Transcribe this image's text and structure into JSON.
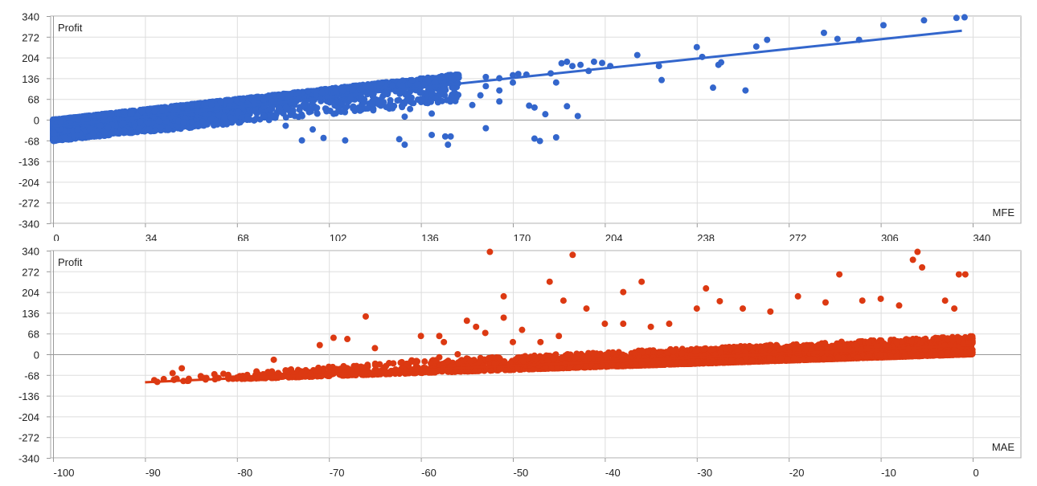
{
  "chart_data": [
    {
      "type": "scatter",
      "title": "",
      "xlabel": "MFE",
      "ylabel": "Profit",
      "xlim": [
        0,
        340
      ],
      "ylim": [
        -340,
        340
      ],
      "x_ticks": [
        0,
        34,
        68,
        102,
        136,
        170,
        204,
        238,
        272,
        306,
        340
      ],
      "y_ticks": [
        340,
        272,
        204,
        136,
        68,
        0,
        -68,
        -136,
        -204,
        -272,
        -340
      ],
      "grid": true,
      "color": "#3366cc",
      "trendline": {
        "x": [
          0,
          336
        ],
        "y": [
          -22,
          292
        ]
      },
      "dense_band": {
        "x_range": [
          0,
          150
        ],
        "upper_line": [
          [
            0,
            0
          ],
          [
            150,
            150
          ]
        ],
        "lower_bound": -90
      },
      "points": [
        [
          150,
          138
        ],
        [
          160,
          140
        ],
        [
          165,
          136
        ],
        [
          170,
          146
        ],
        [
          172,
          150
        ],
        [
          175,
          148
        ],
        [
          184,
          152
        ],
        [
          188,
          185
        ],
        [
          190,
          190
        ],
        [
          192,
          176
        ],
        [
          195,
          180
        ],
        [
          200,
          190
        ],
        [
          203,
          186
        ],
        [
          206,
          176
        ],
        [
          160,
          110
        ],
        [
          165,
          96
        ],
        [
          170,
          122
        ],
        [
          176,
          46
        ],
        [
          178,
          40
        ],
        [
          182,
          18
        ],
        [
          186,
          122
        ],
        [
          190,
          44
        ],
        [
          194,
          12
        ],
        [
          198,
          160
        ],
        [
          216,
          212
        ],
        [
          224,
          176
        ],
        [
          225,
          130
        ],
        [
          238,
          238
        ],
        [
          240,
          206
        ],
        [
          246,
          180
        ],
        [
          247,
          188
        ],
        [
          244,
          105
        ],
        [
          256,
          96
        ],
        [
          260,
          240
        ],
        [
          264,
          262
        ],
        [
          285,
          285
        ],
        [
          290,
          265
        ],
        [
          298,
          262
        ],
        [
          307,
          310
        ],
        [
          322,
          326
        ],
        [
          334,
          334
        ],
        [
          337,
          336
        ],
        [
          110,
          70
        ],
        [
          118,
          60
        ],
        [
          125,
          45
        ],
        [
          130,
          10
        ],
        [
          140,
          -50
        ],
        [
          145,
          -55
        ],
        [
          147,
          -55
        ],
        [
          128,
          -64
        ],
        [
          108,
          -68
        ],
        [
          100,
          -60
        ],
        [
          96,
          -32
        ],
        [
          92,
          -68
        ],
        [
          86,
          -20
        ],
        [
          140,
          20
        ],
        [
          132,
          35
        ],
        [
          155,
          48
        ],
        [
          165,
          60
        ],
        [
          158,
          80
        ],
        [
          178,
          -62
        ],
        [
          186,
          -58
        ],
        [
          180,
          -70
        ],
        [
          160,
          -28
        ],
        [
          146,
          -82
        ],
        [
          130,
          -82
        ]
      ]
    },
    {
      "type": "scatter",
      "title": "",
      "xlabel": "MAE",
      "ylabel": "Profit",
      "xlim": [
        -100,
        0
      ],
      "ylim": [
        -340,
        340
      ],
      "x_ticks": [
        -100,
        -90,
        -80,
        -70,
        -60,
        -50,
        -40,
        -30,
        -20,
        -10,
        0
      ],
      "y_ticks": [
        340,
        272,
        204,
        136,
        68,
        0,
        -68,
        -136,
        -204,
        -272,
        -340
      ],
      "grid": true,
      "color": "#dc3912",
      "trendline": {
        "x": [
          -90,
          0
        ],
        "y": [
          -92,
          30
        ]
      },
      "dense_band": {
        "x_range": [
          -90,
          0
        ],
        "lower_line": [
          [
            -90,
            -92
          ],
          [
            0,
            0
          ]
        ],
        "upper_line": [
          [
            -90,
            -80
          ],
          [
            -60,
            -20
          ],
          [
            -30,
            20
          ],
          [
            0,
            60
          ]
        ]
      },
      "points": [
        [
          -52.5,
          336
        ],
        [
          -43.5,
          326
        ],
        [
          -51,
          190
        ],
        [
          -46,
          238
        ],
        [
          -44.5,
          176
        ],
        [
          -36,
          238
        ],
        [
          -38,
          204
        ],
        [
          -30,
          150
        ],
        [
          -27.5,
          174
        ],
        [
          -14.5,
          262
        ],
        [
          -6,
          336
        ],
        [
          -6.5,
          310
        ],
        [
          -5.5,
          285
        ],
        [
          -1.5,
          262
        ],
        [
          -0.8,
          262
        ],
        [
          -29,
          216
        ],
        [
          -16,
          170
        ],
        [
          -19,
          190
        ],
        [
          -76,
          -18
        ],
        [
          -71,
          30
        ],
        [
          -69.5,
          54
        ],
        [
          -68,
          50
        ],
        [
          -66,
          124
        ],
        [
          -65,
          20
        ],
        [
          -60,
          60
        ],
        [
          -58,
          60
        ],
        [
          -57.5,
          40
        ],
        [
          -55,
          110
        ],
        [
          -54,
          90
        ],
        [
          -53,
          70
        ],
        [
          -51,
          120
        ],
        [
          -50,
          40
        ],
        [
          -49,
          80
        ],
        [
          -47,
          40
        ],
        [
          -45,
          60
        ],
        [
          -42,
          150
        ],
        [
          -40,
          100
        ],
        [
          -38,
          100
        ],
        [
          -35,
          90
        ],
        [
          -33,
          100
        ],
        [
          -87,
          -62
        ],
        [
          -86,
          -46
        ],
        [
          -82,
          -78
        ],
        [
          -80,
          -80
        ],
        [
          -74,
          -75
        ],
        [
          -72,
          -65
        ],
        [
          -63,
          -30
        ],
        [
          -61,
          -20
        ],
        [
          -58,
          -10
        ],
        [
          -56,
          0
        ],
        [
          -25,
          150
        ],
        [
          -22,
          140
        ],
        [
          -12,
          176
        ],
        [
          -10,
          182
        ],
        [
          -8,
          160
        ],
        [
          -3,
          176
        ],
        [
          -2,
          150
        ]
      ]
    }
  ],
  "charts": [
    {
      "y_axis_title": "Profit",
      "x_axis_title": "MFE"
    },
    {
      "y_axis_title": "Profit",
      "x_axis_title": "MAE"
    }
  ]
}
